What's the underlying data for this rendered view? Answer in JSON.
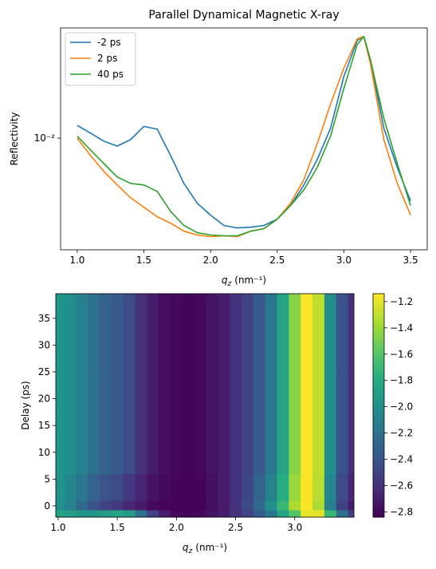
{
  "chart_data": [
    {
      "type": "line",
      "title": "Parallel Dynamical Magnetic X-ray",
      "xlabel": {
        "text": "q",
        "subscript": "z",
        "unit": "(nm⁻¹)"
      },
      "ylabel": "Reflectivity",
      "yscale": "log",
      "legend": "upper-left",
      "xlim": [
        0.875,
        3.625
      ],
      "ylim": [
        0.0034,
        0.029
      ],
      "xticks": [
        {
          "value": 1,
          "label": "1.0"
        },
        1.5,
        {
          "value": 2,
          "label": "2.0"
        },
        2.5,
        {
          "value": 3,
          "label": "3.0"
        },
        3.5
      ],
      "yticks": [
        {
          "value": 0.01,
          "label": "10⁻²"
        }
      ],
      "x": [
        1.0,
        1.1,
        1.2,
        1.3,
        1.4,
        1.5,
        1.6,
        1.7,
        1.8,
        1.9,
        2.0,
        2.1,
        2.2,
        2.3,
        2.4,
        2.5,
        2.6,
        2.7,
        2.8,
        2.9,
        3.0,
        3.1,
        3.15,
        3.2,
        3.3,
        3.4,
        3.5
      ],
      "series": [
        {
          "name": "-2 ps",
          "color": "#1f77b4",
          "values": [
            0.0113,
            0.0105,
            0.0097,
            0.00926,
            0.00985,
            0.0112,
            0.0109,
            0.00845,
            0.00646,
            0.00533,
            0.00475,
            0.0043,
            0.0042,
            0.00423,
            0.0043,
            0.00457,
            0.00521,
            0.00636,
            0.00813,
            0.011,
            0.0182,
            0.0257,
            0.0267,
            0.0212,
            0.011,
            0.00753,
            0.00545
          ]
        },
        {
          "name": "2 ps",
          "color": "#ff7f0e",
          "values": [
            0.01,
            0.00845,
            0.00724,
            0.00636,
            0.00562,
            0.00513,
            0.00468,
            0.0044,
            0.00407,
            0.00392,
            0.00386,
            0.00389,
            0.00386,
            0.00407,
            0.00417,
            0.00457,
            0.00533,
            0.00671,
            0.00948,
            0.0139,
            0.0197,
            0.0261,
            0.0267,
            0.0204,
            0.00985,
            0.00646,
            0.00475
          ]
        },
        {
          "name": "40 ps",
          "color": "#2ca02c",
          "values": [
            0.0102,
            0.00891,
            0.00782,
            0.00687,
            0.00646,
            0.00636,
            0.00598,
            0.00493,
            0.0043,
            0.00401,
            0.00392,
            0.00389,
            0.00389,
            0.00407,
            0.00417,
            0.00457,
            0.00521,
            0.00607,
            0.00753,
            0.0102,
            0.0162,
            0.0247,
            0.0267,
            0.0212,
            0.0121,
            0.00782,
            0.00521
          ]
        }
      ]
    },
    {
      "type": "heatmap",
      "xlabel": {
        "text": "q",
        "subscript": "z",
        "unit": "(nm⁻¹)"
      },
      "ylabel": "Delay (ps)",
      "colormap": "viridis",
      "clim": [
        -2.84,
        -1.14
      ],
      "xlim": [
        0.98,
        3.5
      ],
      "ylim": [
        -2.1,
        39.6
      ],
      "xticks": [
        {
          "value": 1,
          "label": "1.0"
        },
        1.5,
        {
          "value": 2,
          "label": "2.0"
        },
        2.5,
        {
          "value": 3,
          "label": "3.0"
        }
      ],
      "yticks": [
        0,
        5,
        10,
        15,
        20,
        25,
        30,
        35
      ],
      "cticks": [
        {
          "value": -1.2,
          "label": "−1.2"
        },
        {
          "value": -1.4,
          "label": "−1.4"
        },
        {
          "value": -1.6,
          "label": "−1.6"
        },
        {
          "value": -1.8,
          "label": "−1.8"
        },
        {
          "value": -2.0,
          "label": "−2.0"
        },
        {
          "value": -2.2,
          "label": "−2.2"
        },
        {
          "value": -2.4,
          "label": "−2.4"
        },
        {
          "value": -2.6,
          "label": "−2.6"
        },
        {
          "value": -2.8,
          "label": "−2.8"
        }
      ],
      "x": [
        1.0,
        1.1,
        1.2,
        1.3,
        1.4,
        1.5,
        1.6,
        1.7,
        1.8,
        1.9,
        2.0,
        2.1,
        2.2,
        2.3,
        2.4,
        2.5,
        2.6,
        2.7,
        2.8,
        2.9,
        3.0,
        3.1,
        3.2,
        3.3,
        3.4,
        3.5
      ],
      "y": [
        -1.5,
        0,
        2,
        10,
        20,
        30,
        38
      ],
      "z": [
        [
          -1.85,
          -1.9,
          -1.95,
          -1.95,
          -1.9,
          -1.85,
          -1.9,
          -2.2,
          -2.5,
          -2.7,
          -2.8,
          -2.82,
          -2.8,
          -2.75,
          -2.7,
          -2.6,
          -2.5,
          -2.35,
          -2.15,
          -1.85,
          -1.6,
          -1.2,
          -1.2,
          -1.7,
          -2.2,
          -2.5
        ],
        [
          -2.0,
          -2.1,
          -2.25,
          -2.4,
          -2.5,
          -2.55,
          -2.65,
          -2.72,
          -2.8,
          -2.82,
          -2.83,
          -2.83,
          -2.83,
          -2.78,
          -2.72,
          -2.6,
          -2.45,
          -2.25,
          -2.0,
          -1.7,
          -1.35,
          -1.15,
          -1.35,
          -2.1,
          -2.5,
          -2.7
        ],
        [
          -1.97,
          -2.05,
          -2.17,
          -2.3,
          -2.4,
          -2.45,
          -2.55,
          -2.66,
          -2.75,
          -2.8,
          -2.82,
          -2.83,
          -2.82,
          -2.77,
          -2.71,
          -2.6,
          -2.48,
          -2.3,
          -2.08,
          -1.78,
          -1.4,
          -1.15,
          -1.32,
          -2.05,
          -2.45,
          -2.65
        ],
        [
          -1.95,
          -2.0,
          -2.1,
          -2.2,
          -2.3,
          -2.35,
          -2.45,
          -2.6,
          -2.7,
          -2.78,
          -2.8,
          -2.82,
          -2.8,
          -2.75,
          -2.7,
          -2.6,
          -2.5,
          -2.35,
          -2.15,
          -1.85,
          -1.45,
          -1.15,
          -1.3,
          -2.0,
          -2.4,
          -2.6
        ],
        [
          -1.95,
          -2.0,
          -2.1,
          -2.2,
          -2.3,
          -2.35,
          -2.45,
          -2.6,
          -2.7,
          -2.78,
          -2.8,
          -2.82,
          -2.8,
          -2.75,
          -2.7,
          -2.6,
          -2.5,
          -2.35,
          -2.15,
          -1.85,
          -1.45,
          -1.15,
          -1.3,
          -2.0,
          -2.4,
          -2.6
        ],
        [
          -1.95,
          -2.0,
          -2.1,
          -2.2,
          -2.3,
          -2.35,
          -2.45,
          -2.6,
          -2.7,
          -2.78,
          -2.8,
          -2.82,
          -2.8,
          -2.75,
          -2.7,
          -2.6,
          -2.5,
          -2.35,
          -2.15,
          -1.85,
          -1.45,
          -1.15,
          -1.3,
          -2.0,
          -2.4,
          -2.6
        ],
        [
          -1.95,
          -2.0,
          -2.1,
          -2.2,
          -2.3,
          -2.35,
          -2.45,
          -2.6,
          -2.7,
          -2.78,
          -2.8,
          -2.82,
          -2.8,
          -2.75,
          -2.7,
          -2.6,
          -2.5,
          -2.35,
          -2.15,
          -1.85,
          -1.45,
          -1.15,
          -1.3,
          -2.0,
          -2.4,
          -2.6
        ]
      ]
    }
  ]
}
